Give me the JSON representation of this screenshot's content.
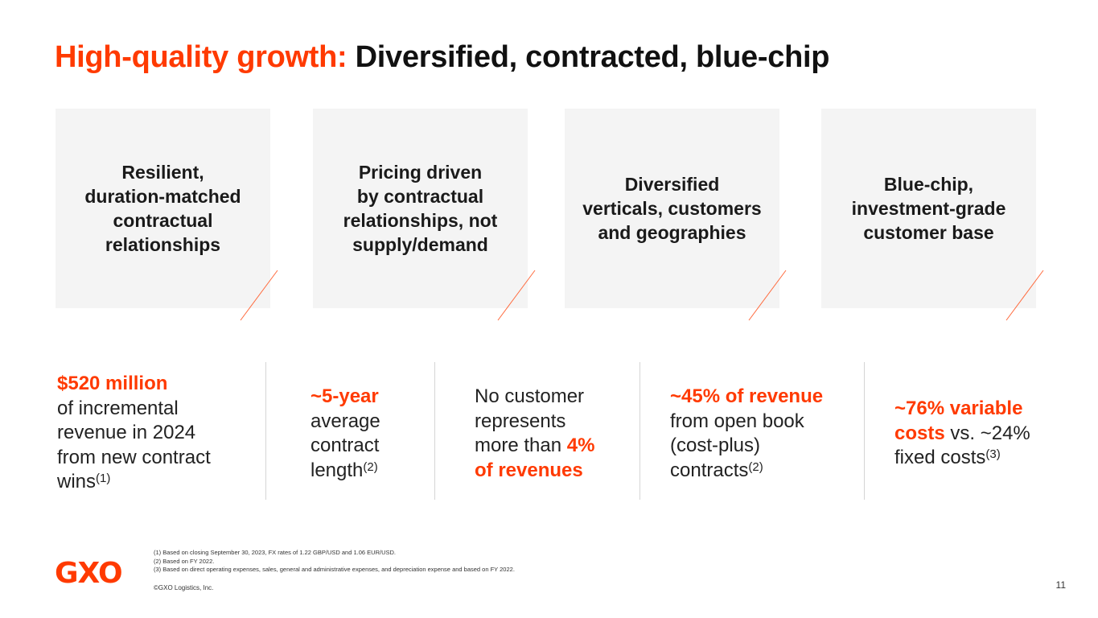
{
  "title": {
    "accent": "High-quality growth:",
    "rest": "Diversified, contracted, blue-chip"
  },
  "cards": [
    {
      "line1": "Resilient,",
      "line2": "duration-matched",
      "line3": "contractual",
      "line4": "relationships"
    },
    {
      "line1": "Pricing driven",
      "line2": "by contractual",
      "line3": "relationships, not",
      "line4": "supply/demand"
    },
    {
      "line1": "Diversified",
      "line2": "verticals, customers",
      "line3": "and geographies"
    },
    {
      "line1": "Blue-chip,",
      "line2": "investment-grade",
      "line3": "customer base"
    }
  ],
  "stats": {
    "s1": {
      "hl": "$520 million",
      "l1": "of incremental",
      "l2": "revenue in 2024",
      "l3": "from new contract",
      "l4": "wins",
      "sup": "(1)"
    },
    "s2": {
      "hl": "~5-year",
      "l1": "average",
      "l2": "contract",
      "l3": "length",
      "sup": "(2)"
    },
    "s3": {
      "l1": "No customer",
      "l2": "represents",
      "l3": "more than ",
      "hl1": "4%",
      "hl2": "of revenues"
    },
    "s4": {
      "hl": "~45% of revenue",
      "l1": "from open book",
      "l2": "(cost-plus)",
      "l3": "contracts",
      "sup": "(2)"
    },
    "s5": {
      "hl1": "~76% variable",
      "hl2": "costs",
      "l1": " vs. ~24%",
      "l2": "fixed costs",
      "sup": "(3)"
    }
  },
  "footnotes": [
    "(1) Based on closing September 30, 2023, FX rates of 1.22 GBP/USD and 1.06 EUR/USD.",
    "(2) Based on FY 2022.",
    "(3) Based on direct operating expenses, sales, general and administrative expenses, and depreciation expense and based on FY 2022."
  ],
  "logo": "GXO",
  "copyright": "©GXO Logistics, Inc.",
  "page_number": "11",
  "colors": {
    "accent": "#ff3a00",
    "card_bg": "#f4f4f4",
    "divider": "#d5d5d5"
  }
}
